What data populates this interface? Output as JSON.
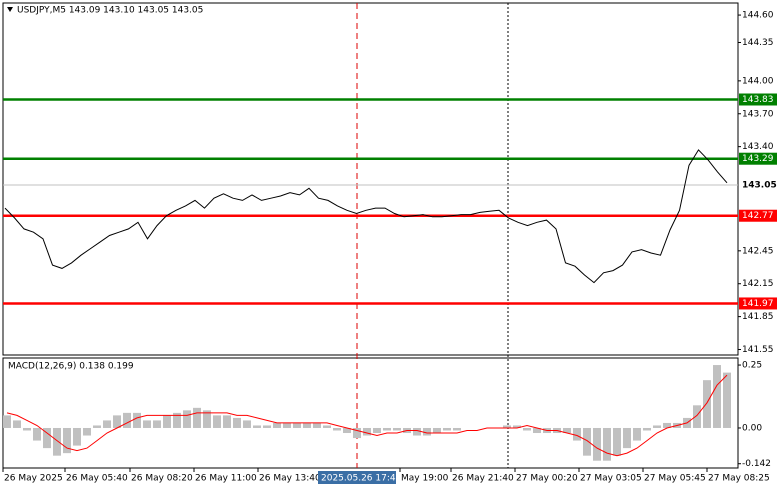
{
  "chart_data": [
    {
      "type": "line",
      "title": "USDJPY,M5  143.09 143.10 143.05 143.05",
      "color": "#000000",
      "values": [
        142.84,
        142.75,
        142.65,
        142.62,
        142.56,
        142.32,
        142.29,
        142.34,
        142.41,
        142.47,
        142.53,
        142.59,
        142.62,
        142.65,
        142.71,
        142.56,
        142.68,
        142.77,
        142.82,
        142.86,
        142.91,
        142.84,
        142.93,
        142.97,
        142.93,
        142.91,
        142.96,
        142.91,
        142.93,
        142.95,
        142.98,
        142.96,
        143.02,
        142.93,
        142.91,
        142.86,
        142.82,
        142.79,
        142.82,
        142.84,
        142.84,
        142.79,
        142.76,
        142.77,
        142.78,
        142.76,
        142.76,
        142.77,
        142.78,
        142.78,
        142.8,
        142.81,
        142.82,
        142.75,
        142.71,
        142.68,
        142.71,
        142.73,
        142.65,
        142.34,
        142.31,
        142.23,
        142.16,
        142.25,
        142.27,
        142.32,
        142.44,
        142.46,
        142.43,
        142.41,
        142.64,
        142.82,
        143.23,
        143.37,
        143.28,
        143.17,
        143.07
      ],
      "ylim": [
        141.5,
        144.71
      ],
      "yticks": [
        {
          "value": 144.6,
          "label": "144.60"
        },
        144.35,
        {
          "value": 144,
          "label": "144.00"
        },
        {
          "value": 143.7,
          "label": "143.70"
        },
        {
          "value": 143.4,
          "label": "143.40"
        },
        142.45,
        142.15,
        141.85,
        141.55
      ],
      "levels": [
        {
          "value": 143.83,
          "color": "#008000"
        },
        {
          "value": 143.29,
          "color": "#008000"
        },
        {
          "value": 142.77,
          "color": "#ff0000"
        },
        {
          "value": 141.97,
          "color": "#ff0000"
        }
      ],
      "last_price": 143.05,
      "x_labels": [
        "26 May 2025",
        "26 May 05:40",
        "26 May 08:20",
        "26 May 11:00",
        "26 May 13:40",
        null,
        "May 19:00",
        "26 May 21:40",
        "27 May 00:20",
        "27 May 03:05",
        "27 May 05:45",
        "27 May 08:25"
      ],
      "crosshair_label": "2025.05.26 17:45"
    },
    {
      "type": "macd",
      "title": "MACD(12,26,9) 0.138 0.199",
      "ylim": [
        -0.159,
        0.278
      ],
      "yticks": [
        0.25,
        {
          "value": 0,
          "label": "0.00"
        },
        -0.142
      ],
      "series": [
        {
          "color": "#c0c0c0",
          "values": [
            0.05,
            0.03,
            -0.01,
            -0.05,
            -0.08,
            -0.11,
            -0.1,
            -0.07,
            -0.03,
            0.01,
            0.03,
            0.05,
            0.06,
            0.06,
            0.03,
            0.03,
            0.05,
            0.06,
            0.07,
            0.08,
            0.07,
            0.05,
            0.05,
            0.04,
            0.03,
            0.01,
            0.01,
            0.02,
            0.02,
            0.02,
            0.02,
            0.02,
            0.01,
            -0.01,
            -0.02,
            -0.04,
            -0.03,
            -0.02,
            -0.01,
            -0.01,
            -0.02,
            -0.03,
            -0.03,
            -0.02,
            -0.01,
            -0.01,
            0.0,
            0.0,
            0.0,
            0.0,
            0.01,
            0.01,
            -0.01,
            -0.02,
            -0.02,
            -0.02,
            -0.02,
            -0.05,
            -0.11,
            -0.13,
            -0.13,
            -0.11,
            -0.08,
            -0.05,
            -0.01,
            0.01,
            0.02,
            0.02,
            0.04,
            0.09,
            0.19,
            0.25,
            0.22
          ]
        },
        {
          "color": "#ff0000",
          "values": [
            0.06,
            0.05,
            0.03,
            0.01,
            -0.02,
            -0.05,
            -0.08,
            -0.09,
            -0.08,
            -0.05,
            -0.02,
            0.0,
            0.02,
            0.04,
            0.05,
            0.05,
            0.05,
            0.05,
            0.05,
            0.06,
            0.06,
            0.06,
            0.06,
            0.05,
            0.05,
            0.04,
            0.03,
            0.02,
            0.02,
            0.02,
            0.02,
            0.02,
            0.02,
            0.01,
            0.0,
            -0.01,
            -0.02,
            -0.03,
            -0.02,
            -0.02,
            -0.01,
            -0.01,
            -0.02,
            -0.02,
            -0.02,
            -0.02,
            -0.01,
            -0.01,
            0.0,
            0.0,
            0.0,
            0.0,
            0.01,
            0.0,
            -0.01,
            -0.01,
            -0.02,
            -0.03,
            -0.05,
            -0.08,
            -0.1,
            -0.11,
            -0.1,
            -0.08,
            -0.05,
            -0.02,
            0.0,
            0.01,
            0.02,
            0.05,
            0.1,
            0.17,
            0.21
          ]
        }
      ]
    }
  ]
}
